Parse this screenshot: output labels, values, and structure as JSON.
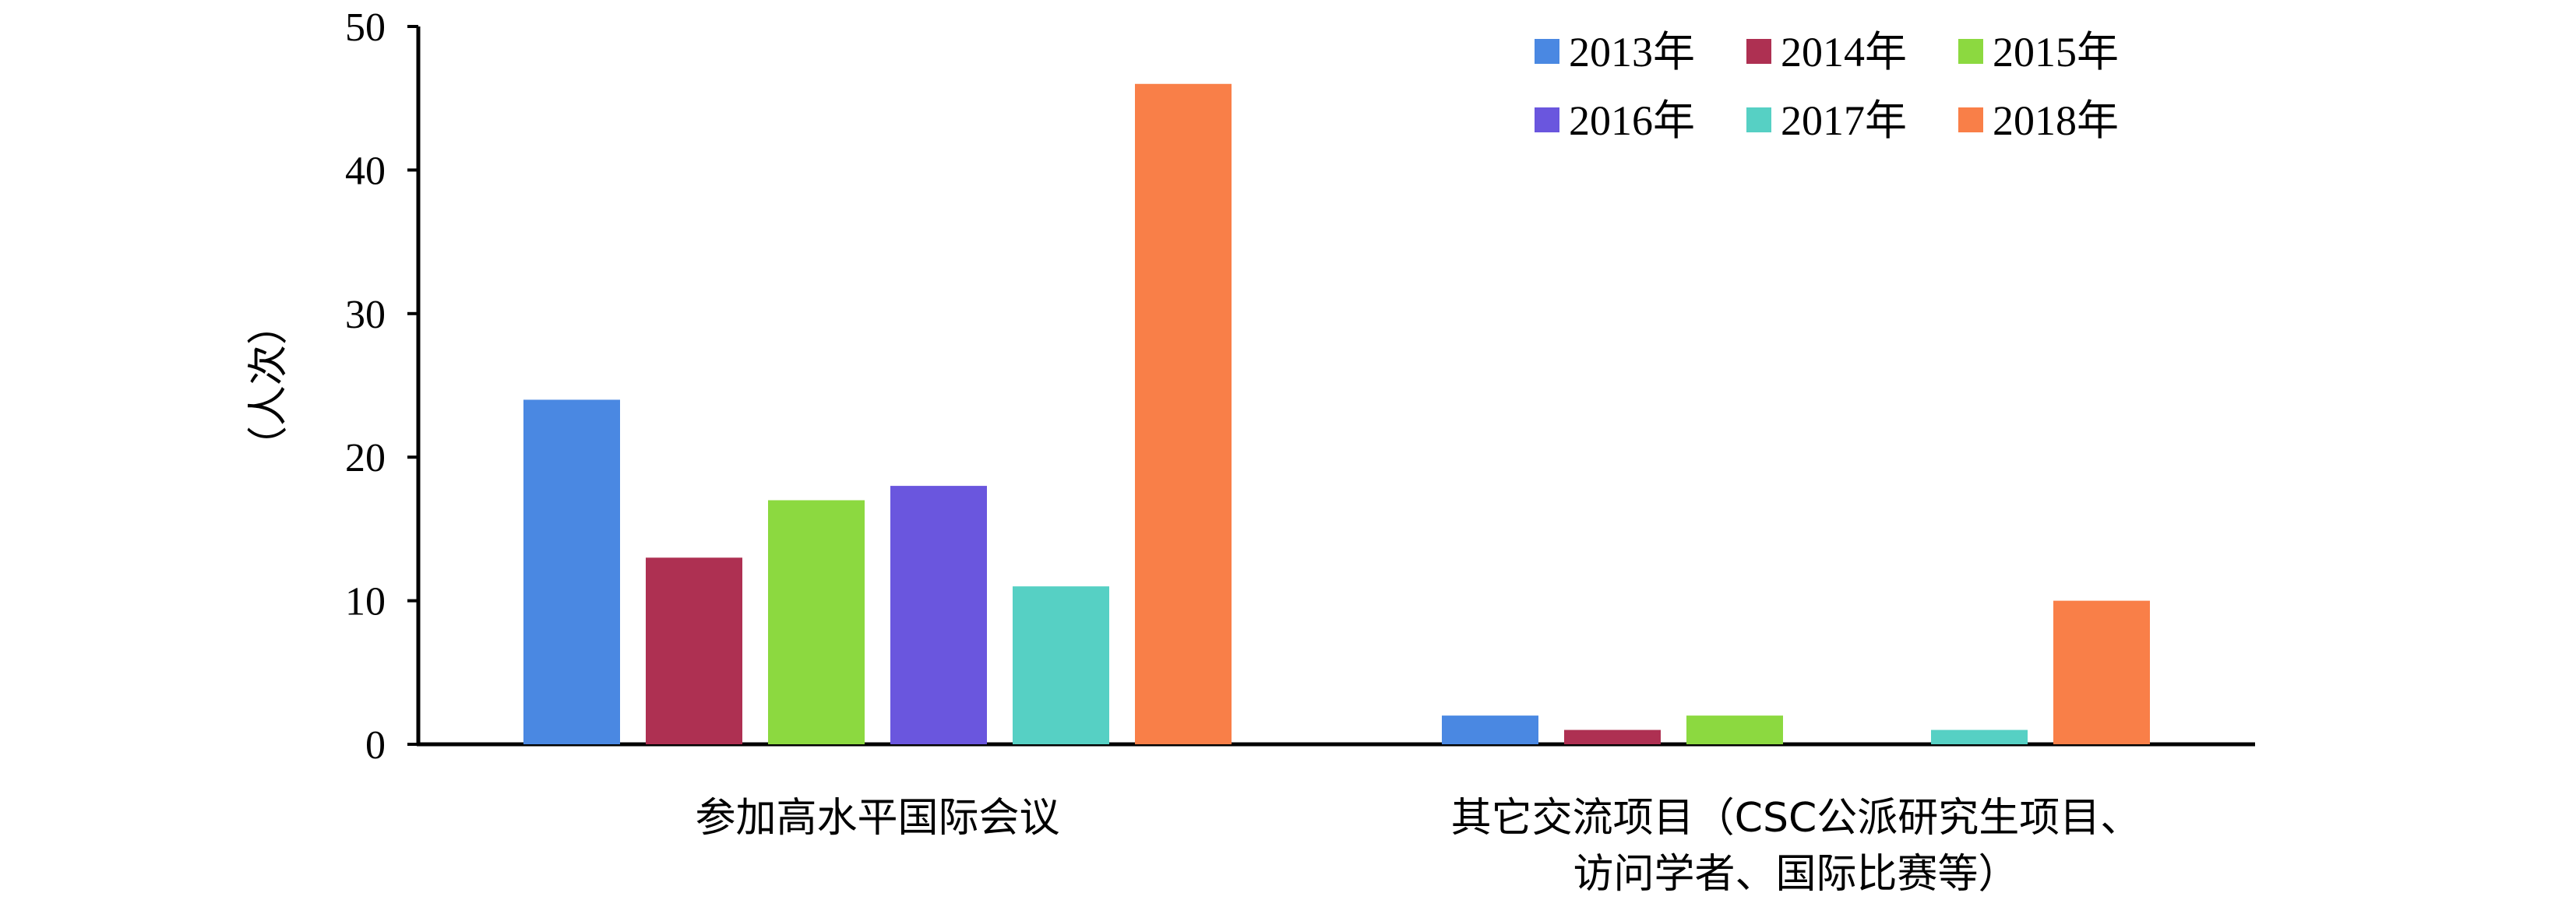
{
  "chart_data": {
    "type": "bar",
    "title": "",
    "xlabel": "",
    "ylabel": "（人次）",
    "ylim": [
      0,
      50
    ],
    "yticks": [
      0,
      10,
      20,
      30,
      40,
      50
    ],
    "grid": false,
    "legend_position": "top-right",
    "categories": [
      [
        "参加高水平国际会议"
      ],
      [
        "其它交流项目（CSC公派研究生项目、",
        "访问学者、国际比赛等）"
      ]
    ],
    "series": [
      {
        "name": "2013年",
        "color": "#4A88E2",
        "values": [
          24,
          2
        ]
      },
      {
        "name": "2014年",
        "color": "#AE3052",
        "values": [
          13,
          1
        ]
      },
      {
        "name": "2015年",
        "color": "#8CD940",
        "values": [
          17,
          2
        ]
      },
      {
        "name": "2016年",
        "color": "#6A56DE",
        "values": [
          18,
          0
        ]
      },
      {
        "name": "2017年",
        "color": "#56D0C4",
        "values": [
          11,
          1
        ]
      },
      {
        "name": "2018年",
        "color": "#F97F48",
        "values": [
          46,
          10
        ]
      }
    ]
  }
}
